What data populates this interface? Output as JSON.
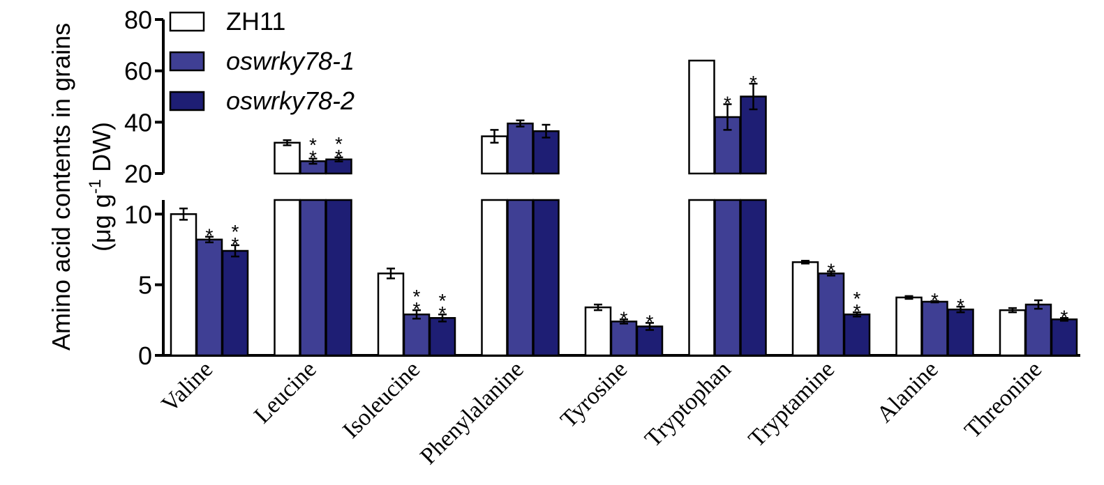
{
  "chart_data": {
    "type": "bar",
    "title": "",
    "ylabel_line1": "Amino acid contents in grains",
    "ylabel_line2_prefix": "(μg g",
    "ylabel_line2_sup": "-1",
    "ylabel_line2_suffix": " DW)",
    "xlabel": "",
    "axis_break": true,
    "lower_ylim": [
      0,
      11
    ],
    "upper_ylim": [
      20,
      80
    ],
    "lower_ticks": [
      {
        "v": 0,
        "label": "0"
      },
      {
        "v": 5,
        "label": "5"
      },
      {
        "v": 10,
        "label": "10"
      }
    ],
    "upper_ticks": [
      {
        "v": 20,
        "label": "20"
      },
      {
        "v": 40,
        "label": "40"
      },
      {
        "v": 60,
        "label": "60"
      },
      {
        "v": 80,
        "label": "80"
      }
    ],
    "categories": [
      "Valine",
      "Leucine",
      "Isoleucine",
      "Phenylalanine",
      "Tyrosine",
      "Tryptophan",
      "Tryptamine",
      "Alanine",
      "Threonine"
    ],
    "series": [
      {
        "name": "ZH11",
        "color": "#ffffff",
        "values": [
          10.0,
          32.0,
          5.8,
          34.5,
          3.4,
          64.0,
          6.6,
          4.1,
          3.2
        ],
        "errors": [
          0.4,
          1.0,
          0.35,
          2.5,
          0.2,
          0.0,
          0.1,
          0.1,
          0.15
        ],
        "sig": [
          "",
          "",
          "",
          "",
          "",
          "",
          "",
          "",
          ""
        ]
      },
      {
        "name": "oswrky78-1",
        "color": "#3f3f94",
        "values": [
          8.2,
          24.8,
          2.9,
          39.5,
          2.4,
          42.0,
          5.8,
          3.8,
          3.6
        ],
        "errors": [
          0.2,
          1.0,
          0.3,
          1.2,
          0.15,
          5.0,
          0.15,
          0.05,
          0.3
        ],
        "sig": [
          "*",
          "**",
          "**",
          "",
          "*",
          "*",
          "*",
          "*",
          ""
        ]
      },
      {
        "name": "oswrky78-2",
        "color": "#1e1e74",
        "values": [
          7.4,
          25.5,
          2.65,
          36.5,
          2.05,
          50.0,
          2.9,
          3.25,
          2.55
        ],
        "errors": [
          0.4,
          0.8,
          0.25,
          2.5,
          0.25,
          5.0,
          0.15,
          0.2,
          0.1
        ],
        "sig": [
          "**",
          "**",
          "**",
          "",
          "*",
          "*",
          "**",
          "*",
          "*"
        ]
      }
    ],
    "legend_position": "top-left",
    "grid": false
  }
}
